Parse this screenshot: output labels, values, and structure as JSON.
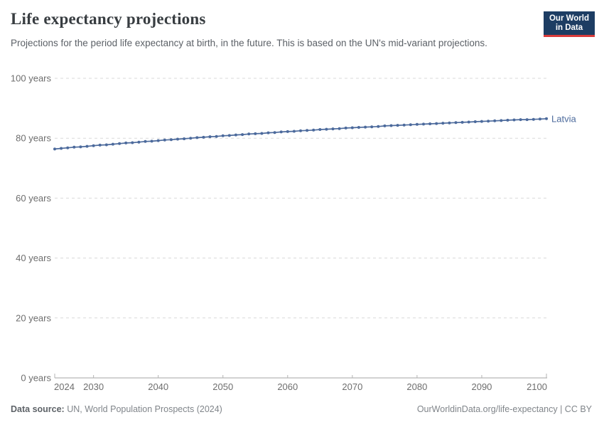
{
  "header": {
    "title": "Life expectancy projections",
    "subtitle": "Projections for the period life expectancy at birth, in the future. This is based on the UN's mid-variant projections.",
    "logo_line1": "Our World",
    "logo_line2": "in Data"
  },
  "colors": {
    "accent_line": "#4C6A9C",
    "series_label": "#4C6A9C",
    "gridline": "#d9d9d9",
    "axis_line": "#a5a5a5",
    "tick": "#b3b3b3",
    "tick_label": "#6e6e6e",
    "logo_bg": "#1d3d63",
    "logo_red": "#d93b3b"
  },
  "chart_data": {
    "type": "line",
    "title": "Life expectancy projections",
    "xlabel": "",
    "ylabel": "",
    "ylim": [
      0,
      100
    ],
    "xlim": [
      2024,
      2100
    ],
    "grid": "horizontal-dashed",
    "legend_position": "end-of-line-label",
    "yticks": [
      0,
      20,
      40,
      60,
      80,
      100
    ],
    "ytick_labels": [
      "0 years",
      "20 years",
      "40 years",
      "60 years",
      "80 years",
      "100 years"
    ],
    "xticks": [
      2024,
      2030,
      2040,
      2050,
      2060,
      2070,
      2080,
      2090,
      2100
    ],
    "xtick_labels": [
      "2024",
      "2030",
      "2040",
      "2050",
      "2060",
      "2070",
      "2080",
      "2090",
      "2100"
    ],
    "x": [
      2024,
      2025,
      2026,
      2027,
      2028,
      2029,
      2030,
      2031,
      2032,
      2033,
      2034,
      2035,
      2036,
      2037,
      2038,
      2039,
      2040,
      2041,
      2042,
      2043,
      2044,
      2045,
      2046,
      2047,
      2048,
      2049,
      2050,
      2051,
      2052,
      2053,
      2054,
      2055,
      2056,
      2057,
      2058,
      2059,
      2060,
      2061,
      2062,
      2063,
      2064,
      2065,
      2066,
      2067,
      2068,
      2069,
      2070,
      2071,
      2072,
      2073,
      2074,
      2075,
      2076,
      2077,
      2078,
      2079,
      2080,
      2081,
      2082,
      2083,
      2084,
      2085,
      2086,
      2087,
      2088,
      2089,
      2090,
      2091,
      2092,
      2093,
      2094,
      2095,
      2096,
      2097,
      2098,
      2099,
      2100
    ],
    "series": [
      {
        "name": "Latvia",
        "color": "#4C6A9C",
        "values": [
          76.4,
          76.6,
          76.8,
          77.0,
          77.1,
          77.3,
          77.5,
          77.7,
          77.8,
          78.0,
          78.2,
          78.4,
          78.5,
          78.7,
          78.9,
          79.0,
          79.2,
          79.4,
          79.5,
          79.7,
          79.8,
          80.0,
          80.2,
          80.3,
          80.5,
          80.6,
          80.8,
          80.9,
          81.1,
          81.2,
          81.4,
          81.5,
          81.6,
          81.8,
          81.9,
          82.1,
          82.2,
          82.3,
          82.5,
          82.6,
          82.7,
          82.9,
          83.0,
          83.1,
          83.2,
          83.4,
          83.5,
          83.6,
          83.7,
          83.8,
          83.9,
          84.1,
          84.2,
          84.3,
          84.4,
          84.5,
          84.6,
          84.7,
          84.8,
          84.9,
          85.0,
          85.1,
          85.2,
          85.3,
          85.4,
          85.5,
          85.6,
          85.7,
          85.8,
          85.9,
          86.0,
          86.1,
          86.2,
          86.2,
          86.3,
          86.4,
          86.5
        ]
      }
    ]
  },
  "footer": {
    "datasource_label": "Data source:",
    "datasource_value": "UN, World Population Prospects (2024)",
    "credit": "OurWorldinData.org/life-expectancy | CC BY"
  }
}
